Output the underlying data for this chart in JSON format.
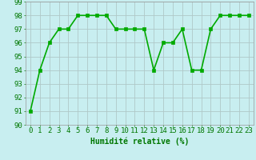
{
  "x": [
    0,
    1,
    2,
    3,
    4,
    5,
    6,
    7,
    8,
    9,
    10,
    11,
    12,
    13,
    14,
    15,
    16,
    17,
    18,
    19,
    20,
    21,
    22,
    23
  ],
  "y": [
    91,
    94,
    96,
    97,
    97,
    98,
    98,
    98,
    98,
    97,
    97,
    97,
    97,
    94,
    96,
    96,
    97,
    94,
    94,
    97,
    98,
    98,
    98,
    98
  ],
  "line_color": "#00aa00",
  "marker": "s",
  "marker_size": 2.5,
  "bg_color": "#c8eef0",
  "grid_color": "#b0c8c8",
  "xlabel": "Humidité relative (%)",
  "xlabel_color": "#007700",
  "xlabel_fontsize": 7,
  "tick_fontsize": 6.5,
  "tick_color": "#007700",
  "ylim": [
    90,
    99
  ],
  "yticks": [
    90,
    91,
    92,
    93,
    94,
    95,
    96,
    97,
    98,
    99
  ],
  "xticks": [
    0,
    1,
    2,
    3,
    4,
    5,
    6,
    7,
    8,
    9,
    10,
    11,
    12,
    13,
    14,
    15,
    16,
    17,
    18,
    19,
    20,
    21,
    22,
    23
  ],
  "line_width": 1.2
}
